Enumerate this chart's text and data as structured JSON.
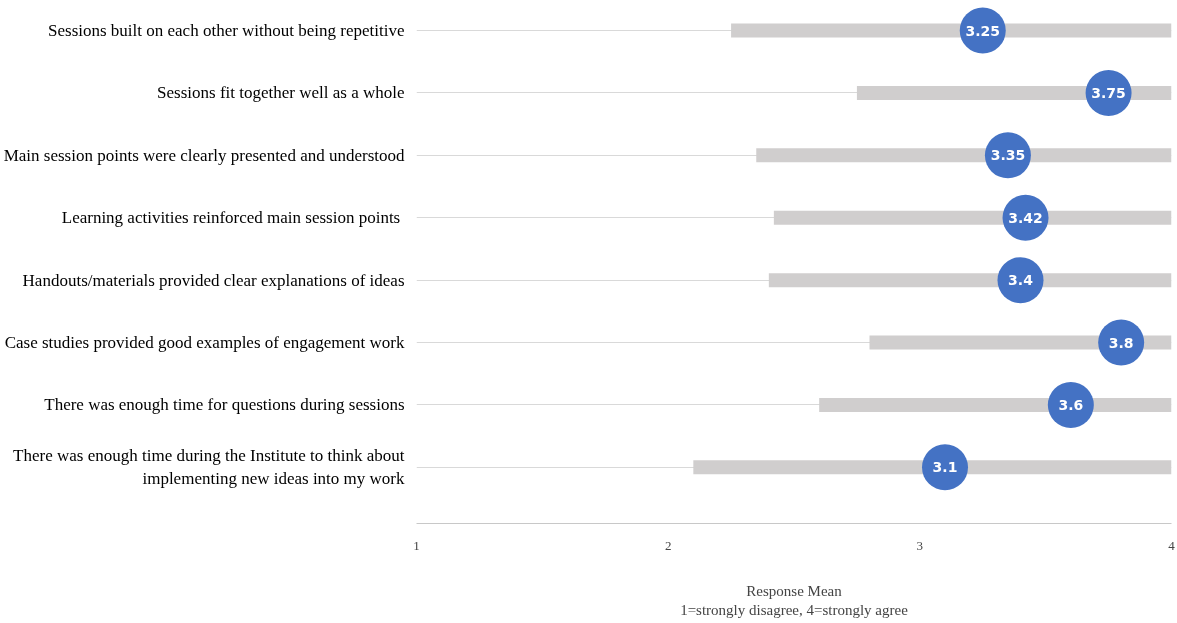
{
  "chart_data": {
    "type": "scatter",
    "orientation": "horizontal",
    "categories": [
      "Sessions built on each other without being repetitive",
      "Sessions fit together well as a whole",
      "Main session points were clearly presented and understood",
      "Learning activities  reinforced main session points",
      "Handouts/materials provided clear explanations of ideas",
      "Case studies provided good examples of engagement work",
      "There was enough time for questions during sessions",
      "There was enough time during the Institute to think about implementing new ideas into my work"
    ],
    "series": [
      {
        "color": "#4472c4",
        "values": [
          3.25,
          3.75,
          3.35,
          3.42,
          3.4,
          3.8,
          3.6,
          3.1
        ],
        "value_labels": [
          "3.25",
          "3.75",
          "3.35",
          "3.42",
          "3.4",
          "3.8",
          "3.6",
          "3.1"
        ],
        "errors": [
          [
            2.25,
            4
          ],
          [
            2.75,
            4
          ],
          [
            2.35,
            4
          ],
          [
            2.42,
            4
          ],
          [
            2.4,
            4
          ],
          [
            2.8,
            4
          ],
          [
            2.6,
            4
          ],
          [
            2.1,
            4
          ]
        ]
      }
    ],
    "xlim": [
      1,
      4
    ],
    "xticks": [
      1,
      2,
      3,
      4
    ],
    "xlabel": "Response Mean\n1=strongly disagree, 4=strongly agree",
    "grid": "y",
    "marker": "circle"
  }
}
